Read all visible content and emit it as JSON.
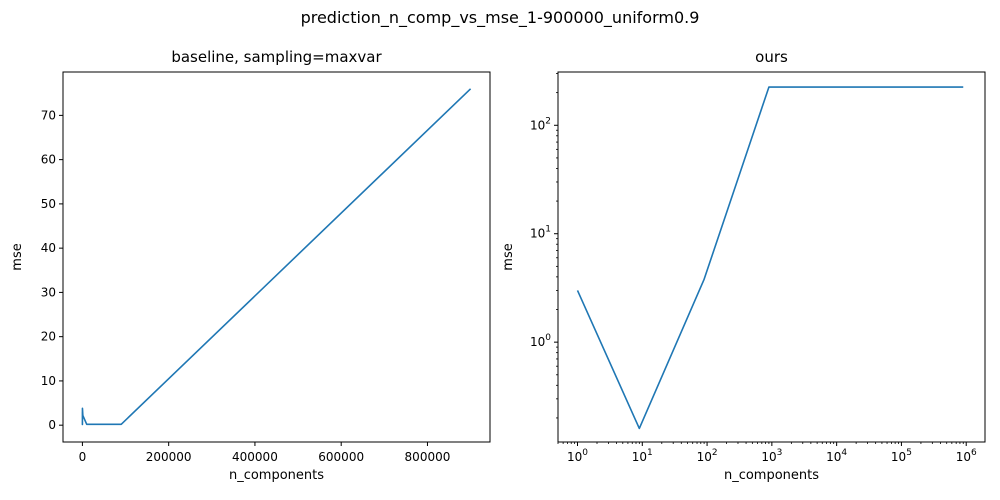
{
  "figure": {
    "suptitle": "prediction_n_comp_vs_mse_1-900000_uniform0.9"
  },
  "chart_data": [
    {
      "type": "line",
      "title": "baseline, sampling=maxvar",
      "xlabel": "n_components",
      "ylabel": "mse",
      "xscale": "linear",
      "yscale": "linear",
      "xlim": [
        -45000,
        945000
      ],
      "ylim": [
        -3.8,
        79.8
      ],
      "xticks": [
        0,
        200000,
        400000,
        600000,
        800000
      ],
      "xtick_labels": [
        "0",
        "200000",
        "400000",
        "600000",
        "800000"
      ],
      "yticks": [
        0,
        10,
        20,
        30,
        40,
        50,
        60,
        70
      ],
      "ytick_labels": [
        "0",
        "10",
        "20",
        "30",
        "40",
        "50",
        "60",
        "70"
      ],
      "grid": false,
      "color": "#1f77b4",
      "series": [
        {
          "x": [
            1,
            10,
            100,
            1000,
            10000,
            90000,
            900000
          ],
          "y": [
            3.0,
            0.16,
            3.8,
            2.2,
            0.2,
            0.2,
            76.0
          ]
        }
      ]
    },
    {
      "type": "line",
      "title": "ours",
      "xlabel": "n_components",
      "ylabel": "mse",
      "xscale": "log",
      "yscale": "log",
      "xlim": [
        0.5,
        1950000
      ],
      "ylim": [
        0.12,
        310
      ],
      "xticks": [
        1,
        10,
        100,
        1000,
        10000,
        100000,
        1000000
      ],
      "xtick_labels": [
        {
          "base": "10",
          "exp": "0"
        },
        {
          "base": "10",
          "exp": "1"
        },
        {
          "base": "10",
          "exp": "2"
        },
        {
          "base": "10",
          "exp": "3"
        },
        {
          "base": "10",
          "exp": "4"
        },
        {
          "base": "10",
          "exp": "5"
        },
        {
          "base": "10",
          "exp": "6"
        }
      ],
      "yticks": [
        1,
        10,
        100
      ],
      "ytick_labels": [
        {
          "base": "10",
          "exp": "0"
        },
        {
          "base": "10",
          "exp": "1"
        },
        {
          "base": "10",
          "exp": "2"
        }
      ],
      "grid": false,
      "color": "#1f77b4",
      "series": [
        {
          "x": [
            1,
            9,
            90,
            900,
            900000
          ],
          "y": [
            3.0,
            0.16,
            3.8,
            225,
            225
          ]
        }
      ]
    }
  ]
}
